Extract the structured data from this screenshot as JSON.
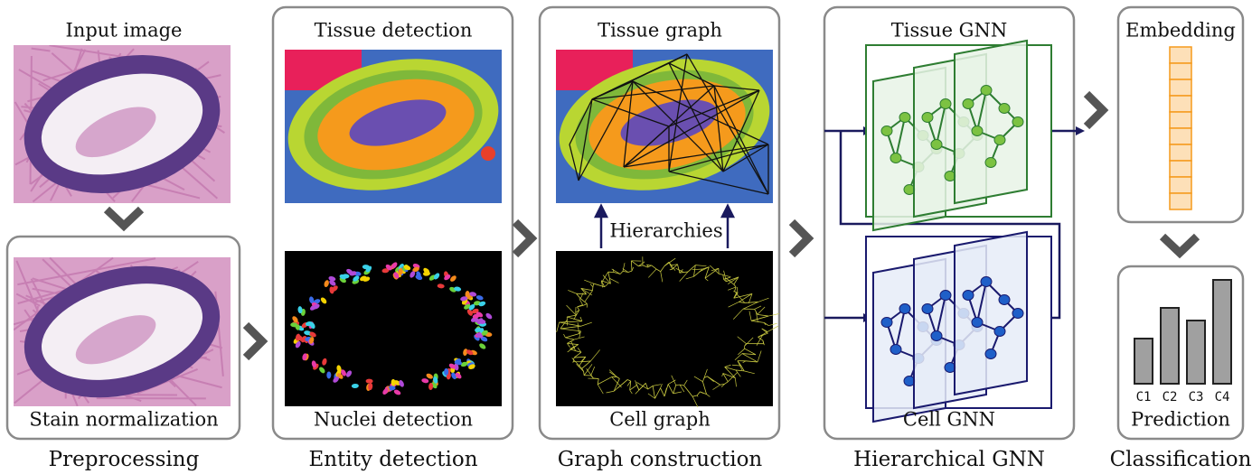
{
  "preprocessing": {
    "input_label": "Input image",
    "stain_label": "Stain normalization",
    "title": "Preprocessing"
  },
  "entity_detection": {
    "tissue_label": "Tissue detection",
    "nuclei_label": "Nuclei detection",
    "title": "Entity detection"
  },
  "graph_construction": {
    "tissue_label": "Tissue graph",
    "link_label": "Hierarchies",
    "cell_label": "Cell graph",
    "title": "Graph construction"
  },
  "hierarchical_gnn": {
    "tissue_label": "Tissue GNN",
    "cell_label": "Cell GNN",
    "title": "Hierarchical GNN"
  },
  "classification": {
    "embedding_label": "Embedding",
    "classes": [
      "C1",
      "C2",
      "C3",
      "C4"
    ],
    "prediction_label": "Prediction",
    "title": "Classification"
  }
}
